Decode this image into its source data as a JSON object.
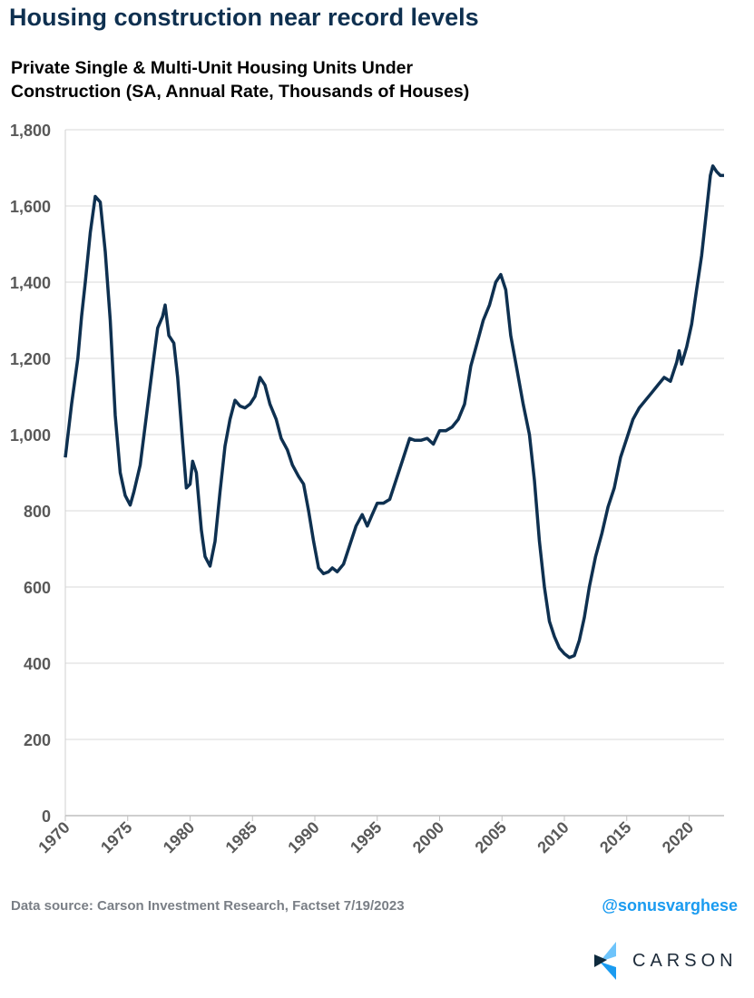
{
  "header": {
    "title": "Housing construction near record levels",
    "subtitle_line1": "Private Single & Multi-Unit Housing Units Under",
    "subtitle_line2": "Construction (SA, Annual Rate, Thousands of Houses)"
  },
  "footer": {
    "source": "Data source: Carson Investment Research, Factset   7/19/2023",
    "handle": "@sonusvarghese",
    "logo_text": "CARSON"
  },
  "colors": {
    "line": "#0e3050",
    "title": "#0e3050",
    "grid": "#d9d9d9",
    "handle": "#1a9bf0"
  },
  "chart_data": {
    "type": "line",
    "title": "Private Single & Multi-Unit Housing Units Under Construction (SA, Annual Rate, Thousands of Houses)",
    "xlabel": "",
    "ylabel": "",
    "xlim": [
      1970,
      2022.8
    ],
    "ylim": [
      0,
      1800
    ],
    "yticks": [
      0,
      200,
      400,
      600,
      800,
      1000,
      1200,
      1400,
      1600,
      1800
    ],
    "ytick_labels": [
      "0",
      "200",
      "400",
      "600",
      "800",
      "1,000",
      "1,200",
      "1,400",
      "1,600",
      "1,800"
    ],
    "xticks": [
      1970,
      1975,
      1980,
      1985,
      1990,
      1995,
      2000,
      2005,
      2010,
      2015,
      2020
    ],
    "xtick_labels": [
      "1970",
      "1975",
      "1980",
      "1985",
      "1990",
      "1995",
      "2000",
      "2005",
      "2010",
      "2015",
      "2020"
    ],
    "grid": true,
    "series": [
      {
        "name": "Housing Units Under Construction",
        "x": [
          1970.0,
          1970.5,
          1971.0,
          1971.3,
          1971.6,
          1972.0,
          1972.4,
          1972.8,
          1973.2,
          1973.6,
          1974.0,
          1974.4,
          1974.8,
          1975.2,
          1975.5,
          1976.0,
          1976.5,
          1977.0,
          1977.4,
          1977.8,
          1978.0,
          1978.3,
          1978.7,
          1979.0,
          1979.4,
          1979.7,
          1980.0,
          1980.2,
          1980.5,
          1980.9,
          1981.2,
          1981.6,
          1982.0,
          1982.4,
          1982.8,
          1983.2,
          1983.6,
          1984.0,
          1984.4,
          1984.8,
          1985.2,
          1985.6,
          1986.0,
          1986.4,
          1986.9,
          1987.3,
          1987.8,
          1988.2,
          1988.7,
          1989.1,
          1989.5,
          1989.9,
          1990.3,
          1990.7,
          1991.1,
          1991.4,
          1991.8,
          1992.3,
          1992.8,
          1993.3,
          1993.8,
          1994.2,
          1994.6,
          1995.0,
          1995.5,
          1996.0,
          1996.5,
          1997.0,
          1997.6,
          1998.0,
          1998.5,
          1999.0,
          1999.5,
          2000.0,
          2000.5,
          2001.0,
          2001.5,
          2002.0,
          2002.5,
          2003.0,
          2003.5,
          2004.0,
          2004.5,
          2004.9,
          2005.3,
          2005.7,
          2006.2,
          2006.7,
          2007.2,
          2007.6,
          2008.0,
          2008.4,
          2008.8,
          2009.2,
          2009.6,
          2010.0,
          2010.4,
          2010.8,
          2011.2,
          2011.6,
          2012.0,
          2012.5,
          2013.0,
          2013.5,
          2014.0,
          2014.5,
          2015.0,
          2015.5,
          2016.0,
          2016.5,
          2017.0,
          2017.5,
          2018.0,
          2018.5,
          2019.0,
          2019.2,
          2019.4,
          2019.8,
          2020.2,
          2020.6,
          2021.0,
          2021.4,
          2021.7,
          2021.9,
          2022.2,
          2022.5,
          2022.8
        ],
        "values": [
          940,
          1080,
          1200,
          1310,
          1400,
          1530,
          1625,
          1610,
          1480,
          1300,
          1050,
          900,
          840,
          815,
          850,
          920,
          1050,
          1180,
          1280,
          1310,
          1340,
          1260,
          1240,
          1150,
          980,
          860,
          870,
          930,
          900,
          750,
          680,
          655,
          720,
          850,
          970,
          1040,
          1090,
          1075,
          1070,
          1080,
          1100,
          1150,
          1130,
          1080,
          1040,
          990,
          960,
          920,
          890,
          870,
          800,
          720,
          650,
          635,
          640,
          650,
          640,
          660,
          710,
          760,
          790,
          760,
          790,
          820,
          820,
          830,
          880,
          930,
          990,
          985,
          985,
          990,
          975,
          1010,
          1010,
          1020,
          1040,
          1080,
          1180,
          1240,
          1300,
          1340,
          1400,
          1420,
          1380,
          1260,
          1170,
          1080,
          1000,
          880,
          720,
          600,
          510,
          470,
          440,
          425,
          415,
          420,
          460,
          520,
          600,
          680,
          740,
          810,
          860,
          940,
          990,
          1040,
          1070,
          1090,
          1110,
          1130,
          1150,
          1140,
          1190,
          1220,
          1185,
          1230,
          1290,
          1380,
          1470,
          1590,
          1680,
          1705,
          1690,
          1680,
          1680
        ]
      }
    ]
  }
}
